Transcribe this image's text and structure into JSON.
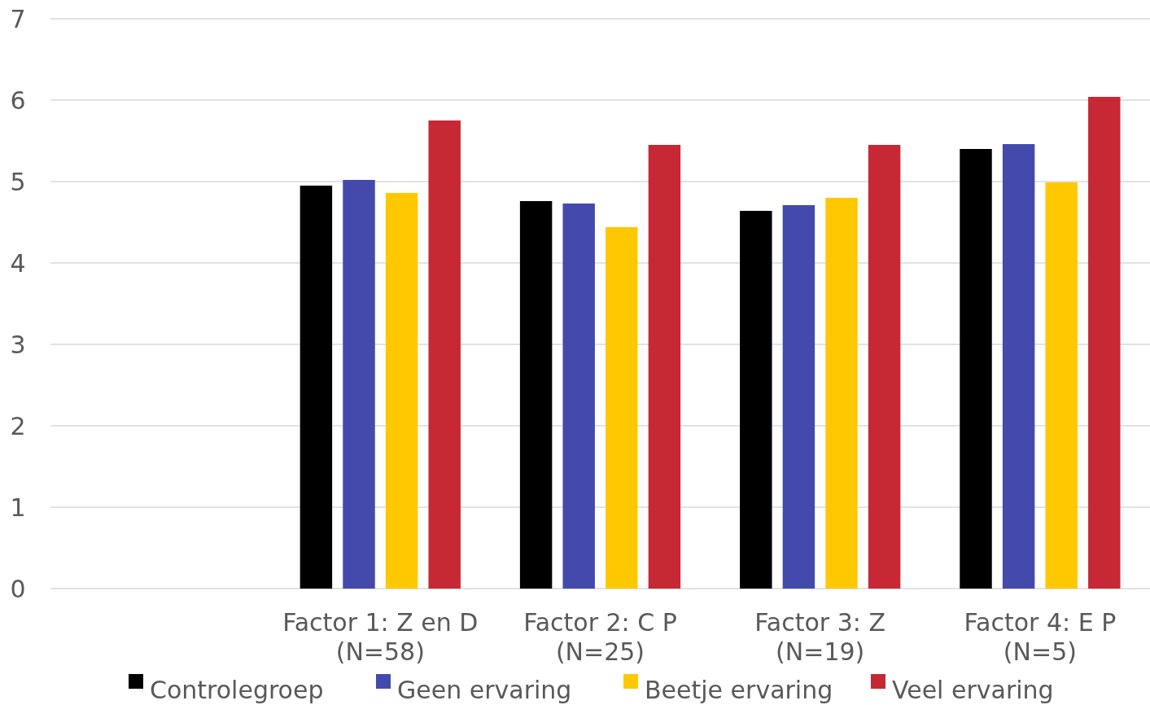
{
  "chart_data": {
    "type": "bar",
    "categories": [
      null,
      "Factor 1: Z en D\n(N=58)",
      "Factor 2: C P\n(N=25)",
      "Factor 3: Z\n(N=19)",
      "Factor 4: E P\n(N=5)"
    ],
    "series": [
      {
        "name": "Controlegroep",
        "color": "#000000",
        "values": [
          null,
          4.95,
          4.76,
          4.64,
          5.4
        ]
      },
      {
        "name": "Geen ervaring",
        "color": "#434aac",
        "values": [
          null,
          5.02,
          4.73,
          4.71,
          5.46
        ]
      },
      {
        "name": "Beetje ervaring",
        "color": "#ffc800",
        "values": [
          null,
          4.86,
          4.44,
          4.8,
          4.99
        ]
      },
      {
        "name": "Veel ervaring",
        "color": "#c62834",
        "values": [
          null,
          5.75,
          5.45,
          5.45,
          6.04
        ]
      }
    ],
    "ylim": [
      0,
      7
    ],
    "yticks": [
      0,
      1,
      2,
      3,
      4,
      5,
      6,
      7
    ],
    "grid": "y",
    "legend": "bottom"
  }
}
